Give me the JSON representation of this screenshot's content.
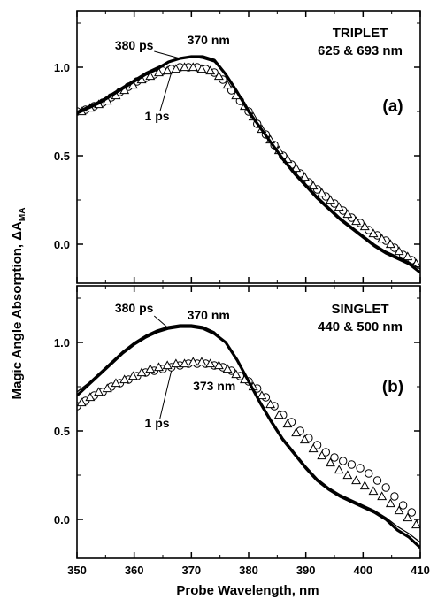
{
  "figure": {
    "ylabel": "Magic Angle Absorption, ΔA",
    "ylabel_sub": "MA",
    "xlabel": "Probe Wavelength, nm"
  },
  "chart_data": [
    {
      "type": "line",
      "panel": "a",
      "panel_label": "(a)",
      "title_lines": [
        "TRIPLET",
        "625 & 693 nm"
      ],
      "xlim": [
        350,
        410
      ],
      "ylim": [
        -0.22,
        1.32
      ],
      "xticks": [
        350,
        360,
        370,
        380,
        390,
        400,
        410
      ],
      "yticks": [
        0.0,
        0.5,
        1.0
      ],
      "ytick_labels": [
        "0.0",
        "0.5",
        "1.0"
      ],
      "grid": false,
      "annotations": [
        {
          "text": "380 ps",
          "x": 360,
          "y": 1.1
        },
        {
          "text": "370 nm",
          "x": 373,
          "y": 1.13
        },
        {
          "text": "1 ps",
          "x": 364,
          "y": 0.7
        }
      ],
      "series": [
        {
          "label": "380 ps",
          "style": "thick-line",
          "x": [
            350,
            352,
            354,
            356,
            358,
            360,
            362,
            364,
            366,
            368,
            370,
            372,
            374,
            376,
            378,
            380,
            382,
            384,
            386,
            388,
            390,
            392,
            394,
            396,
            398,
            400,
            402,
            404,
            406,
            408,
            410
          ],
          "values": [
            0.74,
            0.77,
            0.8,
            0.84,
            0.88,
            0.92,
            0.96,
            0.99,
            1.03,
            1.05,
            1.06,
            1.06,
            1.04,
            0.96,
            0.86,
            0.75,
            0.66,
            0.57,
            0.48,
            0.4,
            0.33,
            0.26,
            0.2,
            0.14,
            0.09,
            0.04,
            -0.01,
            -0.05,
            -0.08,
            -0.11,
            -0.16
          ]
        },
        {
          "label": "380 ps",
          "style": "thin-line",
          "x": [
            350,
            352,
            354,
            356,
            358,
            360,
            362,
            364,
            366,
            368,
            370,
            372,
            374,
            376,
            378,
            380,
            382,
            384,
            386,
            388,
            390,
            392,
            394,
            396,
            398,
            400,
            402,
            404,
            406,
            408,
            410
          ],
          "values": [
            0.75,
            0.78,
            0.81,
            0.85,
            0.89,
            0.93,
            0.97,
            1.0,
            1.03,
            1.05,
            1.06,
            1.05,
            1.03,
            0.96,
            0.86,
            0.76,
            0.66,
            0.57,
            0.49,
            0.41,
            0.34,
            0.27,
            0.21,
            0.15,
            0.1,
            0.05,
            0.0,
            -0.04,
            -0.07,
            -0.1,
            -0.14
          ]
        },
        {
          "label": "1 ps",
          "style": "open-circle",
          "x": [
            350,
            351.5,
            353,
            354.5,
            356,
            357.5,
            359,
            360.5,
            362,
            363.5,
            365,
            366.5,
            368,
            369.5,
            371,
            372.5,
            374,
            375.5,
            377,
            378.5,
            380,
            381.5,
            383,
            384.5,
            386,
            387.5,
            389,
            390.5,
            392,
            393.5,
            395,
            396.5,
            398,
            399.5,
            401,
            402.5,
            404,
            405.5,
            407,
            408.5,
            410
          ],
          "values": [
            0.75,
            0.76,
            0.78,
            0.8,
            0.83,
            0.86,
            0.89,
            0.92,
            0.94,
            0.96,
            0.98,
            0.99,
            1.0,
            1.0,
            1.0,
            0.99,
            0.97,
            0.93,
            0.87,
            0.81,
            0.75,
            0.68,
            0.62,
            0.56,
            0.5,
            0.45,
            0.4,
            0.35,
            0.31,
            0.27,
            0.23,
            0.19,
            0.15,
            0.12,
            0.08,
            0.05,
            0.02,
            -0.02,
            -0.06,
            -0.09,
            -0.14
          ]
        },
        {
          "label": "1 ps",
          "style": "open-triangle",
          "x": [
            350.8,
            352.3,
            353.8,
            355.3,
            356.8,
            358.3,
            359.8,
            361.3,
            362.8,
            364.3,
            365.8,
            367.3,
            368.8,
            370.3,
            371.8,
            373.3,
            374.8,
            376.3,
            377.8,
            379.3,
            380.8,
            382.3,
            383.8,
            385.3,
            386.8,
            388.3,
            389.8,
            391.3,
            392.8,
            394.3,
            395.8,
            397.3,
            398.8,
            400.3,
            401.8,
            403.3,
            404.8,
            406.3,
            407.8,
            409.3
          ],
          "values": [
            0.75,
            0.77,
            0.79,
            0.81,
            0.84,
            0.87,
            0.9,
            0.93,
            0.95,
            0.97,
            0.98,
            0.99,
            1.0,
            1.0,
            0.99,
            0.98,
            0.95,
            0.9,
            0.84,
            0.78,
            0.72,
            0.65,
            0.59,
            0.53,
            0.48,
            0.43,
            0.38,
            0.33,
            0.29,
            0.25,
            0.21,
            0.17,
            0.13,
            0.1,
            0.06,
            0.03,
            0.0,
            -0.04,
            -0.07,
            -0.11
          ]
        }
      ]
    },
    {
      "type": "line",
      "panel": "b",
      "panel_label": "(b)",
      "title_lines": [
        "SINGLET",
        "440 & 500 nm"
      ],
      "xlim": [
        350,
        410
      ],
      "ylim": [
        -0.22,
        1.32
      ],
      "xticks": [
        350,
        360,
        370,
        380,
        390,
        400,
        410
      ],
      "xtick_labels": [
        "350",
        "360",
        "370",
        "380",
        "390",
        "400",
        "410"
      ],
      "yticks": [
        0.0,
        0.5,
        1.0
      ],
      "ytick_labels": [
        "0.0",
        "0.5",
        "1.0"
      ],
      "grid": false,
      "annotations": [
        {
          "text": "380 ps",
          "x": 360,
          "y": 1.17
        },
        {
          "text": "370 nm",
          "x": 373,
          "y": 1.13
        },
        {
          "text": "373 nm",
          "x": 374,
          "y": 0.73
        },
        {
          "text": "1 ps",
          "x": 364,
          "y": 0.52
        }
      ],
      "series": [
        {
          "label": "380 ps",
          "style": "thick-line",
          "x": [
            350,
            352,
            354,
            356,
            358,
            360,
            362,
            364,
            366,
            368,
            370,
            372,
            374,
            376,
            378,
            380,
            382,
            384,
            386,
            388,
            390,
            392,
            394,
            396,
            398,
            400,
            402,
            404,
            406,
            408,
            410
          ],
          "values": [
            0.7,
            0.76,
            0.82,
            0.88,
            0.94,
            0.99,
            1.03,
            1.06,
            1.08,
            1.09,
            1.09,
            1.08,
            1.05,
            1.0,
            0.9,
            0.78,
            0.66,
            0.55,
            0.45,
            0.37,
            0.29,
            0.22,
            0.17,
            0.13,
            0.1,
            0.07,
            0.04,
            0.0,
            -0.06,
            -0.1,
            -0.16
          ]
        },
        {
          "label": "380 ps",
          "style": "thin-line",
          "x": [
            350,
            352,
            354,
            356,
            358,
            360,
            362,
            364,
            366,
            368,
            370,
            372,
            374,
            376,
            378,
            380,
            382,
            384,
            386,
            388,
            390,
            392,
            394,
            396,
            398,
            400,
            402,
            404,
            406,
            408,
            410
          ],
          "values": [
            0.72,
            0.77,
            0.83,
            0.89,
            0.95,
            1.0,
            1.04,
            1.07,
            1.09,
            1.1,
            1.1,
            1.09,
            1.06,
            1.0,
            0.9,
            0.78,
            0.67,
            0.56,
            0.46,
            0.38,
            0.3,
            0.23,
            0.18,
            0.14,
            0.11,
            0.08,
            0.05,
            0.01,
            -0.04,
            -0.08,
            -0.13
          ]
        },
        {
          "label": "1 ps",
          "style": "open-circle",
          "x": [
            350,
            351.5,
            353,
            354.5,
            356,
            357.5,
            359,
            360.5,
            362,
            363.5,
            365,
            366.5,
            368,
            369.5,
            371,
            372.5,
            374,
            375.5,
            377,
            378.5,
            380,
            381.5,
            383,
            384.5,
            386,
            387.5,
            389,
            390.5,
            392,
            393.5,
            395,
            396.5,
            398,
            399.5,
            401,
            402.5,
            404,
            405.5,
            407,
            408.5,
            410
          ],
          "values": [
            0.64,
            0.67,
            0.7,
            0.72,
            0.75,
            0.77,
            0.79,
            0.81,
            0.83,
            0.84,
            0.85,
            0.86,
            0.87,
            0.88,
            0.88,
            0.88,
            0.87,
            0.86,
            0.84,
            0.81,
            0.78,
            0.74,
            0.69,
            0.64,
            0.59,
            0.55,
            0.5,
            0.46,
            0.42,
            0.38,
            0.35,
            0.33,
            0.31,
            0.29,
            0.26,
            0.22,
            0.18,
            0.13,
            0.08,
            0.04,
            -0.02
          ]
        },
        {
          "label": "1 ps",
          "style": "open-triangle",
          "x": [
            350.8,
            352.3,
            353.8,
            355.3,
            356.8,
            358.3,
            359.8,
            361.3,
            362.8,
            364.3,
            365.8,
            367.3,
            368.8,
            370.3,
            371.8,
            373.3,
            374.8,
            376.3,
            377.8,
            379.3,
            380.8,
            382.3,
            383.8,
            385.3,
            386.8,
            388.3,
            389.8,
            391.3,
            392.8,
            394.3,
            395.8,
            397.3,
            398.8,
            400.3,
            401.8,
            403.3,
            404.8,
            406.3,
            407.8,
            409.3
          ],
          "values": [
            0.66,
            0.69,
            0.72,
            0.74,
            0.77,
            0.79,
            0.81,
            0.83,
            0.85,
            0.86,
            0.87,
            0.88,
            0.88,
            0.89,
            0.89,
            0.88,
            0.87,
            0.85,
            0.82,
            0.79,
            0.75,
            0.7,
            0.65,
            0.59,
            0.54,
            0.49,
            0.45,
            0.4,
            0.36,
            0.32,
            0.28,
            0.25,
            0.22,
            0.19,
            0.16,
            0.13,
            0.09,
            0.05,
            0.01,
            -0.03
          ]
        }
      ]
    }
  ]
}
